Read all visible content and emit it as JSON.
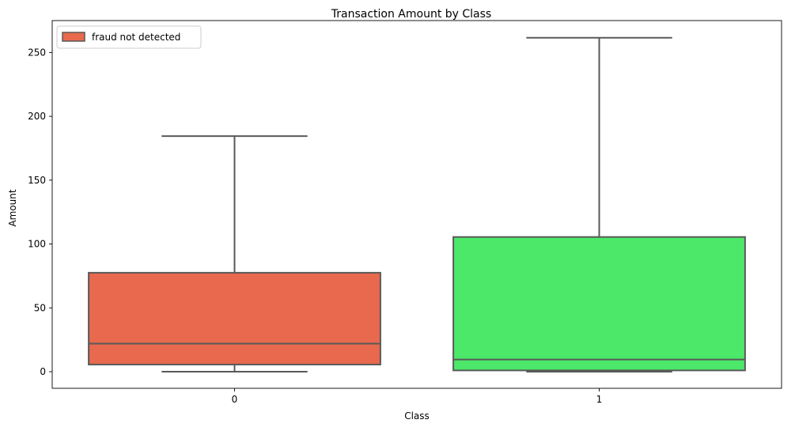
{
  "chart_data": {
    "type": "boxplot",
    "title": "Transaction Amount by Class",
    "xlabel": "Class",
    "ylabel": "Amount",
    "categories": [
      "0",
      "1"
    ],
    "ylim": [
      -13,
      275
    ],
    "yticks": [
      0,
      50,
      100,
      150,
      200,
      250
    ],
    "grid": false,
    "legend": {
      "placement": "top-left",
      "entries": [
        {
          "label": "fraud not detected",
          "color": "#E8694D"
        }
      ]
    },
    "boxes": [
      {
        "category": "0",
        "whisker_low": 0.0,
        "q1": 5.6,
        "median": 22.0,
        "q3": 77.5,
        "whisker_high": 184.5,
        "color": "#E8694D"
      },
      {
        "category": "1",
        "whisker_low": 0.0,
        "q1": 1.0,
        "median": 9.5,
        "q3": 105.5,
        "whisker_high": 261.5,
        "color": "#4CE86A"
      }
    ],
    "line_color": "#595959"
  }
}
